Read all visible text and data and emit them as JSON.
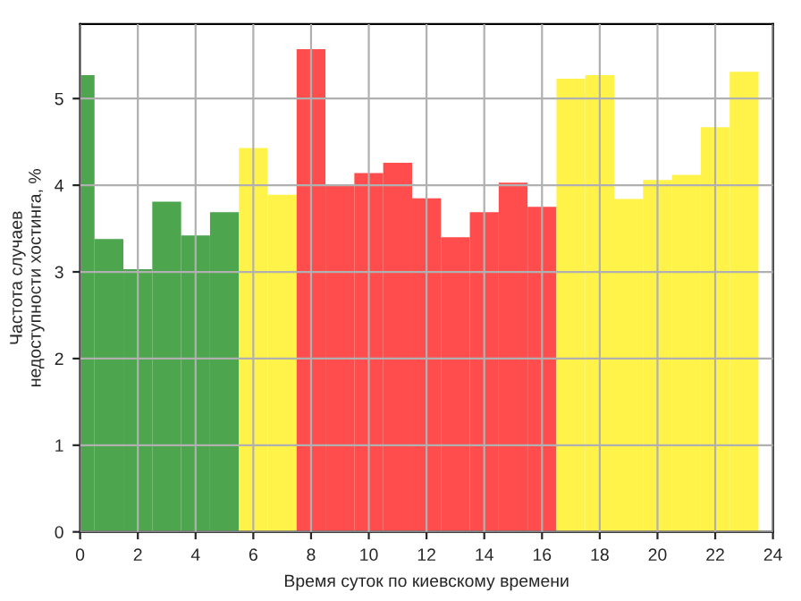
{
  "chart_data": {
    "type": "histogram",
    "xlabel": "Время суток по киевскому времени",
    "ylabel": "Частота случаев\nнедоступности хостинга, %",
    "bins": [
      0,
      0.5,
      1.5,
      2.5,
      3.5,
      4.5,
      5.5,
      6.5,
      7.5,
      8.5,
      9.5,
      10.5,
      11.5,
      12.5,
      13.5,
      14.5,
      15.5,
      16.5,
      17.5,
      18.5,
      19.5,
      20.5,
      21.5,
      22.5,
      23.5
    ],
    "values": [
      5.27,
      3.38,
      3.03,
      3.81,
      3.42,
      3.69,
      4.43,
      3.89,
      5.57,
      4.0,
      4.14,
      4.26,
      3.85,
      3.4,
      3.69,
      4.03,
      3.75,
      5.23,
      5.27,
      3.84,
      4.06,
      4.12,
      4.67,
      5.31
    ],
    "colors": [
      "#4da64d",
      "#4da64d",
      "#4da64d",
      "#4da64d",
      "#4da64d",
      "#4da64d",
      "#fff34a",
      "#fff34a",
      "#ff4c4c",
      "#ff4c4c",
      "#ff4c4c",
      "#ff4c4c",
      "#ff4c4c",
      "#ff4c4c",
      "#ff4c4c",
      "#ff4c4c",
      "#ff4c4c",
      "#fff34a",
      "#fff34a",
      "#fff34a",
      "#fff34a",
      "#fff34a",
      "#fff34a",
      "#fff34a"
    ],
    "xlim": [
      0,
      24
    ],
    "xticks": [
      0,
      2,
      4,
      6,
      8,
      10,
      12,
      14,
      16,
      18,
      20,
      22,
      24
    ],
    "ylim": [
      0,
      5.86
    ],
    "yticks": [
      0,
      1,
      2,
      3,
      4,
      5
    ],
    "grid": true
  }
}
